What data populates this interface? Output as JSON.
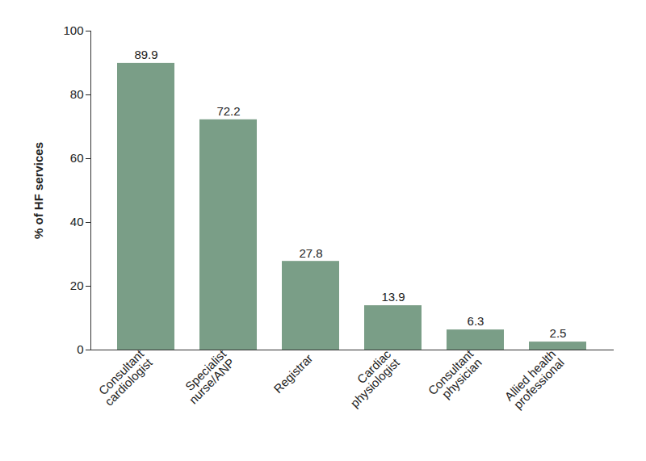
{
  "chart_data": {
    "type": "bar",
    "y_label": "% of HF services",
    "categories": [
      "Consultant cardiologist",
      "Specialist nurse/ANP",
      "Registrar",
      "Cardiac physiologist",
      "Consultant physician",
      "Allied health professional"
    ],
    "values": [
      89.9,
      72.2,
      27.8,
      13.9,
      6.3,
      2.5
    ],
    "color": "#7a9e87",
    "ylim": [
      0,
      100
    ],
    "yticks": [
      0,
      20,
      40,
      60,
      80,
      100
    ],
    "grid": false,
    "data_labels": true
  }
}
